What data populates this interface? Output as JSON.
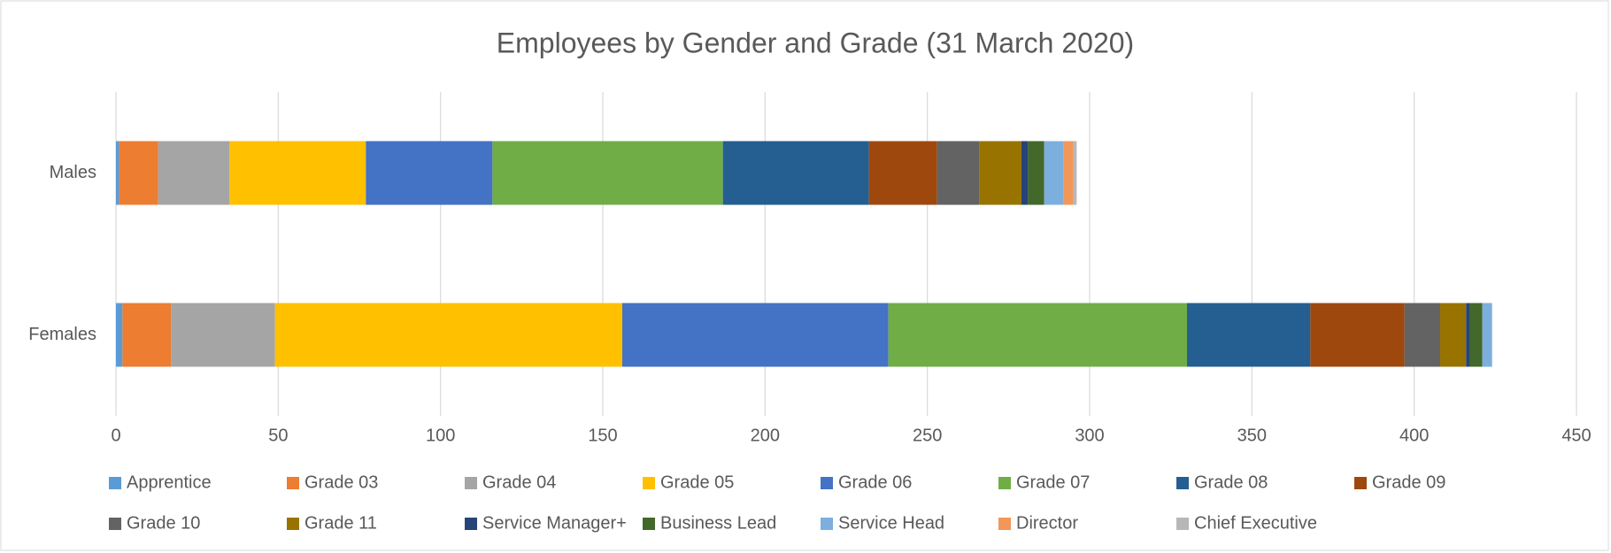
{
  "chart_data": {
    "type": "stacked-barh",
    "title": "Employees by Gender and Grade (31 March 2020)",
    "categories": [
      "Males",
      "Females"
    ],
    "series": [
      {
        "name": "Apprentice",
        "color": "#5b9bd5",
        "values": [
          1,
          2
        ]
      },
      {
        "name": "Grade 03",
        "color": "#ed7d31",
        "values": [
          12,
          15
        ]
      },
      {
        "name": "Grade 04",
        "color": "#a5a5a5",
        "values": [
          22,
          32
        ]
      },
      {
        "name": "Grade 05",
        "color": "#ffc000",
        "values": [
          42,
          107
        ]
      },
      {
        "name": "Grade 06",
        "color": "#4472c4",
        "values": [
          39,
          82
        ]
      },
      {
        "name": "Grade 07",
        "color": "#70ad47",
        "values": [
          71,
          92
        ]
      },
      {
        "name": "Grade 08",
        "color": "#255e91",
        "values": [
          45,
          38
        ]
      },
      {
        "name": "Grade 09",
        "color": "#9e480e",
        "values": [
          21,
          29
        ]
      },
      {
        "name": "Grade 10",
        "color": "#636363",
        "values": [
          13,
          11
        ]
      },
      {
        "name": "Grade 11",
        "color": "#997300",
        "values": [
          13,
          8
        ]
      },
      {
        "name": "Service Manager+",
        "color": "#264478",
        "values": [
          2,
          1
        ]
      },
      {
        "name": "Business Lead",
        "color": "#43682b",
        "values": [
          5,
          4
        ]
      },
      {
        "name": "Service Head",
        "color": "#7cafdd",
        "values": [
          6,
          3
        ]
      },
      {
        "name": "Director",
        "color": "#f1975a",
        "values": [
          3,
          0
        ]
      },
      {
        "name": "Chief Executive",
        "color": "#b7b7b7",
        "values": [
          1,
          0
        ]
      }
    ],
    "xlim": [
      0,
      450
    ],
    "xticks": [
      0,
      50,
      100,
      150,
      200,
      250,
      300,
      350,
      400,
      450
    ],
    "grid": true,
    "legend": "bottom"
  }
}
